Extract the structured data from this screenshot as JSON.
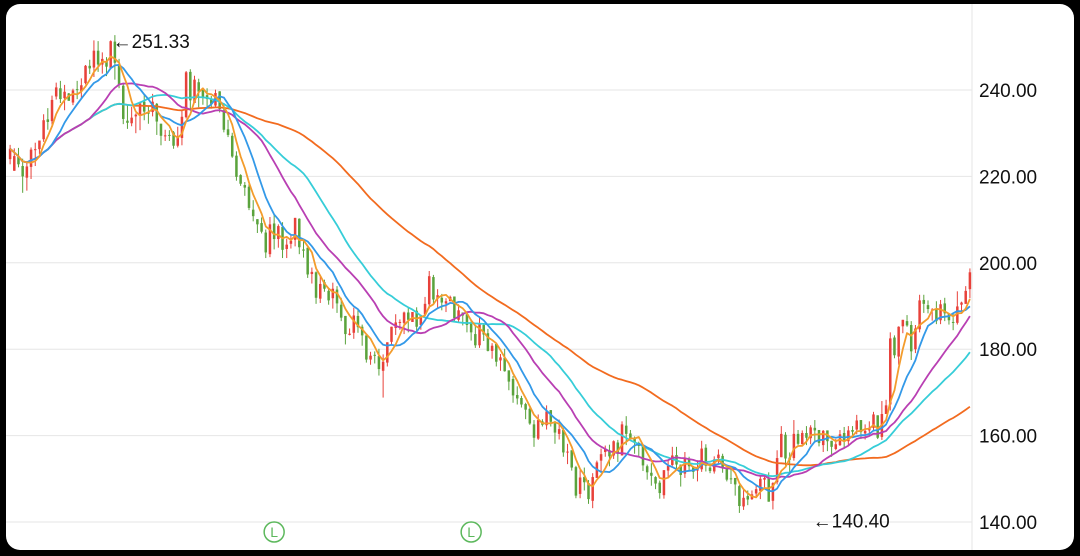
{
  "chart_data": {
    "type": "candlestick",
    "ylim": [
      136,
      255
    ],
    "y_ticks": [
      {
        "value": 240,
        "label": "240.00"
      },
      {
        "value": 220,
        "label": "220.00"
      },
      {
        "value": 200,
        "label": "200.00"
      },
      {
        "value": 180,
        "label": "180.00"
      },
      {
        "value": 160,
        "label": "160.00"
      },
      {
        "value": 140,
        "label": "140.00"
      }
    ],
    "grid": true,
    "annotations": [
      {
        "text": "←251.33",
        "value": 251.33,
        "index": 24
      },
      {
        "text": "←140.40",
        "value": 140.4,
        "index": 191
      }
    ],
    "markers": [
      {
        "glyph": "L",
        "index": 63
      },
      {
        "glyph": "L",
        "index": 110
      }
    ],
    "colors": {
      "up": "#e8413a",
      "down": "#5aa33c",
      "grid": "#e6e6e6",
      "ma5": "#f39c2c",
      "ma10": "#3399e8",
      "ma20": "#b93fb3",
      "ma30": "#36cdd8",
      "ma60": "#f26b1f",
      "marker": "#5cb85c"
    },
    "candles": [
      [
        224.0,
        226.4,
        222.8,
        227.3
      ],
      [
        221.3,
        224.7,
        221.3,
        226.5
      ],
      [
        224.5,
        222.8,
        222.1,
        226.6
      ],
      [
        222.4,
        220.0,
        216.2,
        224.1
      ],
      [
        219.7,
        222.3,
        216.7,
        223.5
      ],
      [
        222.2,
        226.2,
        219.4,
        226.7
      ],
      [
        226.3,
        226.3,
        222.4,
        227.8
      ],
      [
        226.3,
        228.3,
        225.2,
        228.3
      ],
      [
        228.6,
        233.0,
        228.0,
        234.4
      ],
      [
        233.2,
        232.6,
        230.8,
        235.8
      ],
      [
        232.8,
        237.7,
        232.0,
        238.7
      ],
      [
        238.5,
        240.6,
        237.8,
        241.7
      ],
      [
        240.4,
        237.9,
        237.0,
        242.1
      ],
      [
        238.1,
        239.6,
        235.3,
        241.2
      ],
      [
        239.2,
        237.5,
        237.5,
        239.3
      ],
      [
        237.1,
        239.9,
        236.5,
        240.3
      ],
      [
        240.2,
        240.0,
        237.9,
        242.1
      ],
      [
        239.7,
        241.1,
        237.8,
        242.7
      ],
      [
        241.6,
        245.6,
        241.3,
        245.8
      ],
      [
        245.6,
        245.0,
        243.7,
        247.0
      ],
      [
        245.2,
        249.1,
        243.0,
        251.5
      ],
      [
        249.1,
        245.9,
        244.2,
        251.3
      ],
      [
        245.9,
        247.2,
        243.8,
        248.7
      ],
      [
        246.7,
        245.4,
        243.2,
        247.6
      ],
      [
        245.1,
        251.3,
        244.8,
        251.5
      ],
      [
        251.2,
        246.3,
        242.4,
        252.7
      ],
      [
        245.6,
        241.3,
        240.4,
        247.2
      ],
      [
        241.0,
        233.3,
        232.1,
        241.3
      ],
      [
        232.9,
        232.4,
        231.0,
        236.6
      ],
      [
        232.3,
        233.6,
        231.6,
        236.1
      ],
      [
        233.9,
        234.3,
        230.0,
        234.6
      ],
      [
        234.0,
        236.9,
        230.7,
        237.1
      ],
      [
        237.3,
        235.0,
        233.0,
        238.8
      ],
      [
        234.8,
        234.5,
        232.2,
        236.2
      ],
      [
        234.9,
        237.3,
        233.9,
        239.1
      ],
      [
        236.8,
        232.7,
        229.6,
        237.0
      ],
      [
        232.2,
        229.4,
        227.2,
        232.1
      ],
      [
        229.4,
        229.5,
        228.2,
        230.8
      ],
      [
        229.6,
        229.5,
        228.2,
        230.7
      ],
      [
        230.2,
        227.1,
        226.4,
        230.5
      ],
      [
        227.1,
        229.3,
        226.7,
        231.5
      ],
      [
        228.9,
        233.8,
        227.2,
        235.4
      ],
      [
        233.7,
        244.1,
        233.4,
        244.4
      ],
      [
        244.2,
        237.6,
        235.2,
        244.8
      ],
      [
        237.0,
        242.4,
        237.0,
        243.3
      ],
      [
        241.8,
        239.6,
        236.0,
        242.6
      ],
      [
        240.0,
        238.3,
        236.6,
        239.5
      ],
      [
        238.8,
        237.9,
        235.9,
        240.4
      ],
      [
        238.0,
        236.8,
        235.7,
        238.6
      ],
      [
        236.4,
        239.3,
        236.0,
        240.1
      ],
      [
        239.7,
        235.6,
        234.8,
        239.6
      ],
      [
        235.3,
        230.8,
        230.2,
        237.0
      ],
      [
        230.9,
        229.6,
        229.1,
        233.1
      ],
      [
        229.4,
        224.6,
        224.3,
        230.1
      ],
      [
        224.8,
        219.9,
        219.0,
        225.8
      ],
      [
        220.3,
        218.3,
        217.8,
        220.5
      ],
      [
        218.0,
        217.4,
        215.5,
        218.7
      ],
      [
        217.6,
        212.7,
        212.2,
        218.7
      ],
      [
        212.3,
        210.8,
        209.6,
        214.5
      ],
      [
        210.1,
        208.9,
        206.9,
        209.9
      ],
      [
        209.2,
        207.2,
        206.8,
        210.5
      ],
      [
        207.0,
        202.4,
        201.1,
        207.7
      ],
      [
        202.0,
        208.9,
        201.3,
        210.6
      ],
      [
        209.1,
        205.5,
        203.1,
        211.2
      ],
      [
        205.5,
        208.5,
        203.5,
        208.9
      ],
      [
        208.3,
        203.0,
        201.1,
        209.4
      ],
      [
        203.2,
        204.2,
        201.1,
        205.6
      ],
      [
        204.4,
        205.1,
        203.3,
        206.6
      ],
      [
        205.3,
        210.4,
        203.8,
        210.3
      ],
      [
        210.2,
        203.6,
        202.0,
        210.3
      ],
      [
        203.1,
        202.8,
        201.2,
        205.0
      ],
      [
        203.5,
        197.3,
        196.5,
        203.1
      ],
      [
        197.4,
        197.9,
        195.2,
        198.9
      ],
      [
        197.8,
        191.9,
        190.5,
        198.0
      ],
      [
        191.7,
        195.1,
        190.7,
        197.2
      ],
      [
        195.5,
        194.0,
        193.3,
        196.1
      ],
      [
        193.5,
        191.3,
        190.3,
        193.9
      ],
      [
        191.8,
        194.0,
        189.4,
        195.4
      ],
      [
        193.8,
        190.6,
        188.4,
        194.6
      ],
      [
        190.3,
        187.3,
        186.5,
        191.9
      ],
      [
        187.7,
        183.5,
        181.1,
        187.7
      ],
      [
        183.3,
        183.6,
        183.2,
        184.8
      ],
      [
        183.8,
        187.8,
        182.4,
        189.6
      ],
      [
        187.7,
        185.1,
        183.8,
        189.2
      ],
      [
        185.2,
        183.2,
        180.8,
        185.7
      ],
      [
        183.2,
        177.6,
        176.9,
        182.9
      ],
      [
        177.6,
        178.5,
        176.4,
        179.4
      ],
      [
        178.7,
        178.5,
        176.7,
        179.5
      ],
      [
        178.4,
        175.4,
        173.9,
        180.1
      ],
      [
        175.0,
        177.1,
        168.8,
        178.8
      ],
      [
        176.9,
        181.6,
        176.0,
        181.5
      ],
      [
        181.7,
        185.2,
        181.0,
        185.2
      ],
      [
        184.9,
        186.2,
        183.3,
        188.1
      ],
      [
        186.2,
        186.3,
        184.5,
        186.9
      ],
      [
        186.1,
        188.5,
        183.5,
        188.7
      ],
      [
        188.5,
        186.8,
        183.9,
        189.6
      ],
      [
        186.3,
        188.6,
        186.3,
        188.6
      ],
      [
        188.9,
        185.2,
        184.1,
        189.7
      ],
      [
        185.6,
        187.9,
        184.5,
        188.0
      ],
      [
        188.0,
        190.5,
        187.6,
        192.1
      ],
      [
        190.4,
        196.9,
        189.4,
        198.1
      ],
      [
        196.7,
        191.5,
        190.6,
        197.2
      ],
      [
        191.7,
        192.5,
        189.4,
        193.9
      ],
      [
        191.9,
        190.8,
        189.0,
        192.8
      ],
      [
        190.6,
        191.1,
        188.6,
        191.8
      ],
      [
        191.1,
        192.1,
        191.4,
        192.4
      ],
      [
        192.2,
        187.2,
        186.2,
        191.8
      ],
      [
        186.8,
        189.0,
        186.1,
        190.4
      ],
      [
        188.5,
        187.8,
        185.5,
        188.5
      ],
      [
        188.1,
        185.6,
        183.9,
        188.1
      ],
      [
        186.0,
        183.9,
        182.0,
        186.9
      ],
      [
        183.5,
        180.9,
        180.3,
        185.6
      ],
      [
        180.9,
        185.9,
        180.3,
        187.3
      ],
      [
        185.6,
        183.4,
        181.9,
        185.9
      ],
      [
        183.7,
        179.6,
        179.5,
        184.7
      ],
      [
        179.6,
        180.8,
        177.8,
        181.4
      ],
      [
        181.2,
        177.1,
        176.0,
        180.9
      ],
      [
        177.4,
        178.1,
        175.0,
        178.9
      ],
      [
        178.0,
        174.9,
        174.8,
        180.1
      ],
      [
        175.1,
        172.5,
        170.5,
        175.1
      ],
      [
        173.1,
        169.3,
        167.6,
        173.8
      ],
      [
        169.4,
        168.6,
        167.2,
        171.4
      ],
      [
        168.7,
        167.2,
        166.5,
        169.2
      ],
      [
        167.3,
        166.0,
        163.8,
        167.6
      ],
      [
        166.2,
        162.8,
        162.5,
        166.6
      ],
      [
        162.6,
        159.5,
        157.4,
        163.6
      ],
      [
        159.3,
        163.6,
        159.0,
        164.9
      ],
      [
        163.3,
        162.5,
        162.1,
        163.8
      ],
      [
        162.4,
        165.6,
        161.4,
        167.0
      ],
      [
        165.9,
        163.2,
        162.1,
        165.6
      ],
      [
        162.8,
        160.7,
        158.1,
        163.4
      ],
      [
        160.4,
        161.5,
        159.1,
        163.7
      ],
      [
        161.3,
        156.1,
        155.1,
        161.8
      ],
      [
        156.2,
        156.3,
        153.4,
        158.1
      ],
      [
        156.6,
        152.6,
        151.9,
        156.0
      ],
      [
        152.7,
        146.1,
        145.5,
        153.0
      ],
      [
        146.5,
        150.3,
        145.5,
        152.0
      ],
      [
        150.4,
        149.2,
        147.3,
        152.6
      ],
      [
        149.0,
        145.3,
        144.2,
        149.7
      ],
      [
        144.9,
        150.4,
        143.2,
        151.3
      ],
      [
        150.2,
        153.8,
        150.5,
        154.2
      ],
      [
        154.2,
        155.7,
        151.5,
        157.0
      ],
      [
        156.2,
        156.9,
        155.1,
        157.7
      ],
      [
        156.6,
        155.2,
        152.9,
        157.9
      ],
      [
        155.4,
        158.7,
        154.6,
        158.9
      ],
      [
        158.4,
        155.8,
        153.9,
        159.0
      ],
      [
        155.4,
        162.6,
        155.7,
        163.3
      ],
      [
        162.3,
        160.4,
        157.8,
        164.5
      ],
      [
        160.5,
        159.3,
        159.4,
        161.3
      ],
      [
        159.5,
        158.5,
        155.8,
        159.8
      ],
      [
        158.3,
        157.6,
        155.3,
        158.6
      ],
      [
        157.5,
        153.1,
        151.8,
        157.6
      ],
      [
        152.9,
        151.5,
        149.8,
        153.3
      ],
      [
        151.4,
        150.7,
        148.4,
        153.6
      ],
      [
        150.4,
        148.9,
        147.6,
        150.6
      ],
      [
        149.1,
        146.7,
        145.4,
        149.6
      ],
      [
        146.2,
        152.0,
        145.4,
        151.7
      ],
      [
        151.9,
        153.0,
        150.1,
        154.4
      ],
      [
        153.2,
        155.4,
        153.0,
        157.4
      ],
      [
        155.5,
        153.3,
        152.3,
        157.4
      ],
      [
        153.3,
        150.9,
        148.2,
        153.0
      ],
      [
        151.2,
        154.8,
        150.2,
        156.2
      ],
      [
        154.7,
        152.9,
        151.7,
        155.1
      ],
      [
        152.8,
        151.6,
        150.0,
        153.0
      ],
      [
        151.9,
        152.2,
        149.4,
        154.3
      ],
      [
        152.2,
        157.0,
        151.6,
        158.8
      ],
      [
        157.2,
        153.0,
        151.7,
        158.0
      ],
      [
        152.6,
        151.8,
        151.3,
        153.6
      ],
      [
        151.7,
        154.5,
        151.2,
        155.2
      ],
      [
        154.8,
        155.6,
        153.6,
        156.8
      ],
      [
        155.3,
        152.7,
        151.4,
        155.8
      ],
      [
        152.5,
        149.8,
        149.4,
        152.6
      ],
      [
        150.1,
        150.0,
        148.8,
        152.5
      ],
      [
        150.2,
        148.7,
        146.1,
        149.1
      ],
      [
        148.3,
        143.7,
        142.1,
        148.6
      ],
      [
        143.6,
        145.6,
        142.8,
        147.5
      ],
      [
        146.0,
        145.2,
        143.9,
        147.3
      ],
      [
        145.3,
        146.4,
        145.1,
        147.3
      ],
      [
        146.6,
        147.6,
        145.8,
        148.5
      ],
      [
        147.2,
        150.0,
        145.3,
        150.8
      ],
      [
        149.8,
        150.2,
        148.0,
        150.5
      ],
      [
        150.2,
        144.7,
        144.7,
        151.5
      ],
      [
        144.9,
        149.0,
        142.9,
        149.2
      ],
      [
        149.2,
        154.8,
        148.7,
        156.6
      ],
      [
        155.0,
        160.4,
        155.0,
        162.2
      ],
      [
        160.2,
        154.7,
        153.1,
        160.8
      ],
      [
        154.9,
        154.4,
        151.3,
        156.1
      ],
      [
        154.8,
        160.4,
        154.2,
        163.6
      ],
      [
        160.4,
        158.1,
        157.8,
        161.3
      ],
      [
        158.0,
        160.6,
        158.1,
        161.2
      ],
      [
        160.6,
        159.5,
        157.8,
        162.2
      ],
      [
        159.4,
        161.9,
        158.0,
        162.4
      ],
      [
        161.8,
        161.2,
        158.4,
        163.6
      ],
      [
        161.3,
        158.3,
        157.5,
        161.3
      ],
      [
        157.8,
        161.1,
        156.2,
        161.3
      ],
      [
        161.2,
        158.7,
        156.4,
        160.8
      ],
      [
        158.8,
        157.4,
        155.1,
        158.8
      ],
      [
        156.9,
        158.0,
        156.6,
        159.2
      ],
      [
        157.8,
        160.3,
        157.6,
        161.3
      ],
      [
        160.6,
        159.0,
        157.2,
        162.0
      ],
      [
        158.7,
        161.2,
        157.8,
        162.2
      ],
      [
        161.3,
        160.9,
        160.1,
        162.2
      ],
      [
        161.4,
        163.5,
        160.3,
        164.8
      ],
      [
        163.6,
        160.8,
        159.2,
        163.5
      ],
      [
        160.5,
        161.1,
        159.1,
        162.6
      ],
      [
        161.2,
        161.8,
        160.0,
        163.3
      ],
      [
        161.8,
        164.9,
        161.3,
        165.5
      ],
      [
        164.7,
        159.5,
        159.2,
        164.7
      ],
      [
        159.7,
        165.0,
        159.0,
        168.0
      ],
      [
        165.0,
        167.0,
        165.2,
        168.3
      ],
      [
        167.2,
        182.5,
        165.8,
        183.9
      ],
      [
        182.7,
        178.6,
        177.9,
        183.2
      ],
      [
        178.3,
        185.2,
        176.4,
        185.3
      ],
      [
        185.3,
        186.8,
        183.7,
        186.6
      ],
      [
        186.5,
        185.5,
        185.2,
        187.9
      ],
      [
        185.6,
        179.5,
        177.5,
        186.5
      ],
      [
        180.0,
        184.8,
        179.1,
        185.6
      ],
      [
        184.6,
        191.3,
        183.9,
        192.6
      ],
      [
        191.4,
        190.5,
        188.4,
        192.6
      ],
      [
        190.2,
        189.3,
        188.3,
        191.3
      ],
      [
        189.2,
        189.2,
        186.6,
        189.5
      ],
      [
        189.3,
        186.5,
        185.8,
        191.1
      ],
      [
        186.7,
        190.4,
        185.8,
        191.4
      ],
      [
        190.6,
        188.3,
        186.5,
        191.9
      ],
      [
        188.2,
        186.7,
        185.7,
        188.2
      ],
      [
        186.3,
        186.1,
        184.4,
        188.3
      ],
      [
        186.1,
        189.9,
        185.7,
        193.4
      ],
      [
        190.3,
        190.8,
        188.5,
        191.0
      ],
      [
        190.5,
        193.5,
        190.9,
        194.6
      ],
      [
        193.9,
        197.8,
        191.8,
        198.7
      ]
    ]
  }
}
